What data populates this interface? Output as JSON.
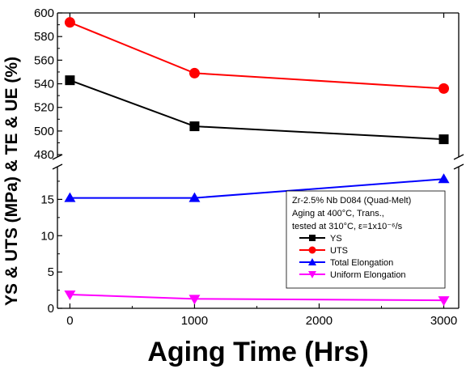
{
  "chart_data": {
    "type": "line",
    "xlabel": "Aging Time (Hrs)",
    "ylabel": "YS & UTS (MPa) & TE & UE (%)",
    "x": [
      0,
      1000,
      3000
    ],
    "xlim": [
      -100,
      3120
    ],
    "xticks": [
      "0",
      "1000",
      "2000",
      "3000"
    ],
    "broken_y_axis": true,
    "upper_panel": {
      "ylim": [
        478,
        600
      ],
      "yticks": [
        "480",
        "500",
        "520",
        "540",
        "560",
        "580",
        "600"
      ]
    },
    "lower_panel": {
      "ylim": [
        0,
        19.5
      ],
      "yticks": [
        "0",
        "5",
        "10",
        "15"
      ]
    },
    "series": [
      {
        "name": "YS",
        "panel": "upper",
        "values": [
          543,
          504,
          493
        ],
        "color": "#000000",
        "marker": "square"
      },
      {
        "name": "UTS",
        "panel": "upper",
        "values": [
          592,
          549,
          536
        ],
        "color": "#ff0000",
        "marker": "circle"
      },
      {
        "name": "Total Elongation",
        "panel": "lower",
        "values": [
          15.2,
          15.2,
          17.8
        ],
        "color": "#0000ff",
        "marker": "triangle-up"
      },
      {
        "name": "Uniform Elongation",
        "panel": "lower",
        "values": [
          1.9,
          1.3,
          1.1
        ],
        "color": "#ff00ff",
        "marker": "triangle-down"
      }
    ],
    "legend": {
      "placement": "lower-right",
      "header_lines": [
        "Zr-2.5% Nb D084 (Quad-Melt)",
        "Aging at 400°C, Trans.,",
        "tested at 310°C, ε=1x10⁻⁶/s"
      ]
    }
  }
}
